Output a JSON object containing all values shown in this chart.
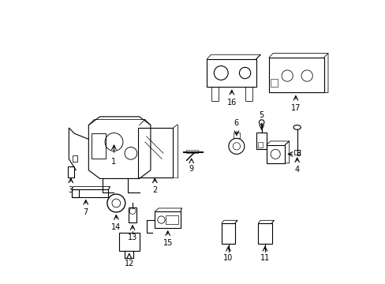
{
  "title": "",
  "background_color": "#ffffff",
  "line_color": "#000000",
  "figsize": [
    4.89,
    3.6
  ],
  "dpi": 100
}
